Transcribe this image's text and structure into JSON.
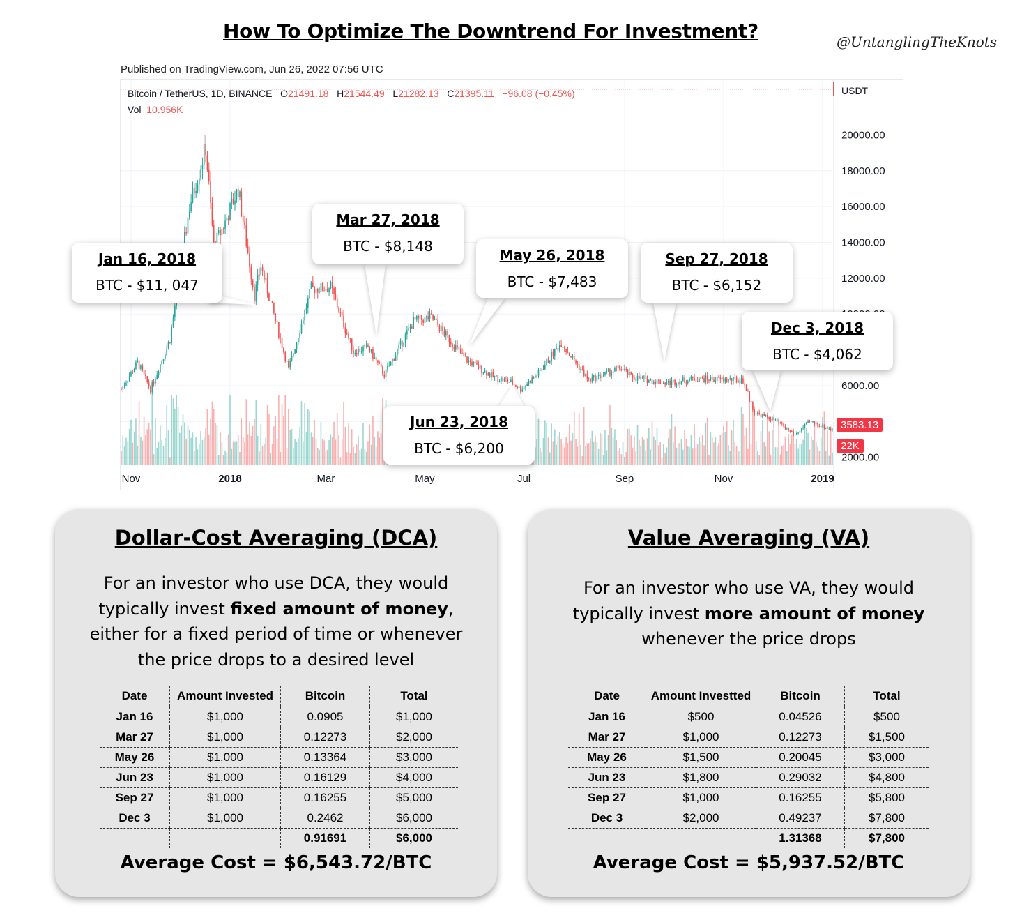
{
  "title": "How To Optimize The Downtrend For Investment?",
  "handle": "@UntanglingTheKnots",
  "published": "Published on TradingView.com, Jun 26, 2022 07:56 UTC",
  "ohlc": {
    "symbol": "Bitcoin / TetherUS, 1D, BINANCE",
    "o_label": "O",
    "o": "21491.18",
    "h_label": "H",
    "h": "21544.49",
    "l_label": "L",
    "l": "21282.13",
    "c_label": "C",
    "c": "21395.11",
    "change": "−96.08 (−0.45%)",
    "vol_label": "Vol",
    "vol": "10.956K"
  },
  "colors": {
    "up": "#26a69a",
    "down": "#ef5350",
    "tag": "#f23645"
  },
  "chart_data": {
    "type": "candlestick",
    "y_axis_label": "USDT",
    "y_ticks": [
      "20000.00",
      "18000.00",
      "16000.00",
      "14000.00",
      "12000.00",
      "10000.00",
      "6000.00",
      "4000.00",
      "2000.00"
    ],
    "y_tick_values": [
      20000,
      18000,
      16000,
      14000,
      12000,
      10000,
      6000,
      4000,
      2000
    ],
    "ylim": [
      1600,
      21300
    ],
    "x_tick_labels": [
      "Nov",
      "2018",
      "Mar",
      "May",
      "Jul",
      "Sep",
      "Nov",
      "2019"
    ],
    "x_tick_dates": [
      "2017-11-01",
      "2018-01-01",
      "2018-03-01",
      "2018-05-01",
      "2018-07-01",
      "2018-09-01",
      "2018-11-01",
      "2019-01-01"
    ],
    "x_bold_ticks": [
      "2018",
      "2019"
    ],
    "xlim": [
      "2017-10-26",
      "2019-01-07"
    ],
    "price_path": [
      [
        "2017-10-26",
        5800
      ],
      [
        "2017-11-05",
        7300
      ],
      [
        "2017-11-13",
        5800
      ],
      [
        "2017-11-25",
        8600
      ],
      [
        "2017-12-07",
        16000
      ],
      [
        "2017-12-17",
        19300
      ],
      [
        "2017-12-22",
        13800
      ],
      [
        "2017-12-28",
        14900
      ],
      [
        "2018-01-06",
        17000
      ],
      [
        "2018-01-16",
        11047
      ],
      [
        "2018-01-20",
        12700
      ],
      [
        "2018-02-06",
        6900
      ],
      [
        "2018-02-20",
        11400
      ],
      [
        "2018-03-04",
        11500
      ],
      [
        "2018-03-18",
        7900
      ],
      [
        "2018-03-27",
        8148
      ],
      [
        "2018-04-06",
        6600
      ],
      [
        "2018-04-24",
        9600
      ],
      [
        "2018-05-05",
        9800
      ],
      [
        "2018-05-26",
        7483
      ],
      [
        "2018-06-12",
        6500
      ],
      [
        "2018-06-23",
        6200
      ],
      [
        "2018-06-29",
        5800
      ],
      [
        "2018-07-10",
        6700
      ],
      [
        "2018-07-24",
        8400
      ],
      [
        "2018-08-10",
        6300
      ],
      [
        "2018-08-30",
        7000
      ],
      [
        "2018-09-05",
        6500
      ],
      [
        "2018-09-27",
        6152
      ],
      [
        "2018-10-15",
        6400
      ],
      [
        "2018-11-13",
        6300
      ],
      [
        "2018-11-20",
        4500
      ],
      [
        "2018-12-03",
        4062
      ],
      [
        "2018-12-15",
        3250
      ],
      [
        "2018-12-24",
        4000
      ],
      [
        "2019-01-06",
        3583.13
      ]
    ],
    "last_price": "3583.13",
    "last_volume": "22K",
    "annotations": [
      {
        "date": "Jan 16, 2018",
        "price": "BTC - $11, 047"
      },
      {
        "date": "Mar 27, 2018",
        "price": "BTC - $8,148"
      },
      {
        "date": "May 26, 2018",
        "price": "BTC - $7,483"
      },
      {
        "date": "Jun 23, 2018",
        "price": "BTC - $6,200"
      },
      {
        "date": "Sep 27, 2018",
        "price": "BTC - $6,152"
      },
      {
        "date": "Dec 3, 2018",
        "price": "BTC - $4,062"
      }
    ]
  },
  "dca": {
    "heading": "Dollar-Cost Averaging (DCA)",
    "desc_pre": "For an investor who use DCA, they would typically invest ",
    "desc_bold": "fixed amount of money",
    "desc_post": ", either for a fixed period of time or whenever the price drops to a desired level",
    "columns": [
      "Date",
      "Amount Invested",
      "Bitcoin",
      "Total"
    ],
    "rows": [
      [
        "Jan 16",
        "$1,000",
        "0.0905",
        "$1,000"
      ],
      [
        "Mar 27",
        "$1,000",
        "0.12273",
        "$2,000"
      ],
      [
        "May 26",
        "$1,000",
        "0.13364",
        "$3,000"
      ],
      [
        "Jun 23",
        "$1,000",
        "0.16129",
        "$4,000"
      ],
      [
        "Sep 27",
        "$1,000",
        "0.16255",
        "$5,000"
      ],
      [
        "Dec 3",
        "$1,000",
        "0.2462",
        "$6,000"
      ]
    ],
    "total_btc": "0.91691",
    "total_amount": "$6,000",
    "average": "Average Cost = $6,543.72/BTC"
  },
  "va": {
    "heading": "Value Averaging (VA)",
    "desc_pre": "For an investor who use VA, they would typically invest ",
    "desc_bold": "more amount of money",
    "desc_post": " whenever the price drops",
    "columns": [
      "Date",
      "Amount Investted",
      "Bitcoin",
      "Total"
    ],
    "rows": [
      [
        "Jan 16",
        "$500",
        "0.04526",
        "$500"
      ],
      [
        "Mar 27",
        "$1,000",
        "0.12273",
        "$1,500"
      ],
      [
        "May 26",
        "$1,500",
        "0.20045",
        "$3,000"
      ],
      [
        "Jun 23",
        "$1,800",
        "0.29032",
        "$4,800"
      ],
      [
        "Sep 27",
        "$1,000",
        "0.16255",
        "$5,800"
      ],
      [
        "Dec 3",
        "$2,000",
        "0.49237",
        "$7,800"
      ]
    ],
    "total_btc": "1.31368",
    "total_amount": "$7,800",
    "average": "Average Cost = $5,937.52/BTC"
  }
}
